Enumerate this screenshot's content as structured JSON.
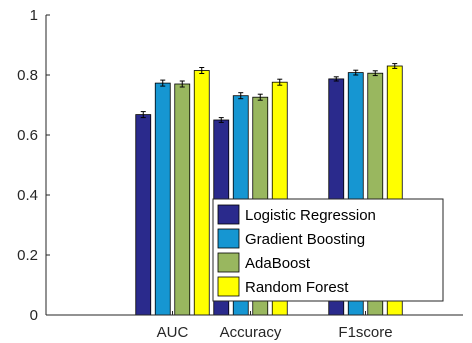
{
  "chart_data": {
    "type": "bar",
    "categories": [
      "AUC",
      "Accuracy",
      "F1score"
    ],
    "series": [
      {
        "name": "Logistic Regression",
        "color": "#2a2a8c",
        "values": [
          0.668,
          0.65,
          0.787
        ],
        "errors": [
          0.01,
          0.008,
          0.007
        ]
      },
      {
        "name": "Gradient Boosting",
        "color": "#1696d2",
        "values": [
          0.773,
          0.731,
          0.808
        ],
        "errors": [
          0.01,
          0.01,
          0.008
        ]
      },
      {
        "name": "AdaBoost",
        "color": "#99b75f",
        "values": [
          0.77,
          0.726,
          0.806
        ],
        "errors": [
          0.01,
          0.01,
          0.008
        ]
      },
      {
        "name": "Random Forest",
        "color": "#ffff00",
        "values": [
          0.815,
          0.776,
          0.83
        ],
        "errors": [
          0.01,
          0.01,
          0.008
        ]
      }
    ],
    "ylim": [
      0,
      1
    ],
    "yticks": [
      0,
      0.2,
      0.4,
      0.6,
      0.8,
      1
    ],
    "ytick_labels": [
      "0",
      "0.2",
      "0.4",
      "0.6",
      "0.8",
      "1"
    ],
    "legend_position": "bottom-right",
    "grid": false,
    "title": "",
    "xlabel": "",
    "ylabel": ""
  }
}
